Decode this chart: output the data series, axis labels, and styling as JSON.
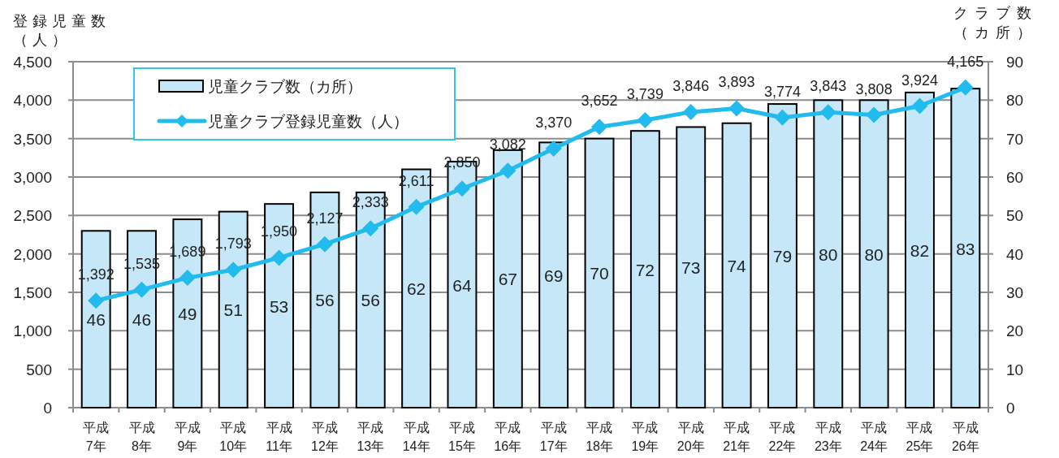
{
  "chart_data": {
    "type": "bar",
    "categories": [
      "平成7年",
      "平成8年",
      "平成9年",
      "平成10年",
      "平成11年",
      "平成12年",
      "平成13年",
      "平成14年",
      "平成15年",
      "平成16年",
      "平成17年",
      "平成18年",
      "平成19年",
      "平成20年",
      "平成21年",
      "平成22年",
      "平成23年",
      "平成24年",
      "平成25年",
      "平成26年"
    ],
    "ylabel": "登録児童数（人）",
    "y2label": "クラブ数（カ所）",
    "ylim": [
      0,
      4500
    ],
    "yticks": [
      0,
      500,
      {
        "value": 1000,
        "label": "1,000"
      },
      {
        "value": 1500,
        "label": "1,500"
      },
      {
        "value": 2000,
        "label": "2,000"
      },
      {
        "value": 2500,
        "label": "2,500"
      },
      {
        "value": 3000,
        "label": "3,000"
      },
      {
        "value": 3500,
        "label": "3,500"
      },
      {
        "value": 4000,
        "label": "4,000"
      },
      {
        "value": 4500,
        "label": "4,500"
      }
    ],
    "y2lim": [
      0,
      90
    ],
    "y2ticks": [
      0,
      10,
      20,
      30,
      40,
      50,
      60,
      70,
      80,
      90
    ],
    "grid": "y",
    "legend": "top left",
    "data_labels": true,
    "marker": "diamond",
    "series": [
      {
        "name": "児童クラブ数（カ所）",
        "axis": "y2",
        "color": "#c5e7f8",
        "values": [
          46,
          46,
          49,
          51,
          53,
          56,
          56,
          62,
          64,
          67,
          69,
          70,
          72,
          73,
          74,
          79,
          80,
          80,
          82,
          83
        ]
      },
      {
        "name": "児童クラブ登録児童数（人）",
        "type": "line",
        "color": "#22bbee",
        "values": [
          1392,
          1535,
          1689,
          1793,
          1950,
          2127,
          2333,
          2611,
          2850,
          3082,
          3370,
          3652,
          3739,
          3846,
          3893,
          3774,
          3843,
          3808,
          3924,
          4165
        ],
        "value_labels": [
          "1,392",
          "1,535",
          "1,689",
          "1,793",
          "1,950",
          "2,127",
          "2,333",
          "2,611",
          "2,850",
          "3,082",
          "3,370",
          "3,652",
          "3,739",
          "3,846",
          "3,893",
          "3,774",
          "3,843",
          "3,808",
          "3,924",
          "4,165"
        ]
      }
    ]
  }
}
